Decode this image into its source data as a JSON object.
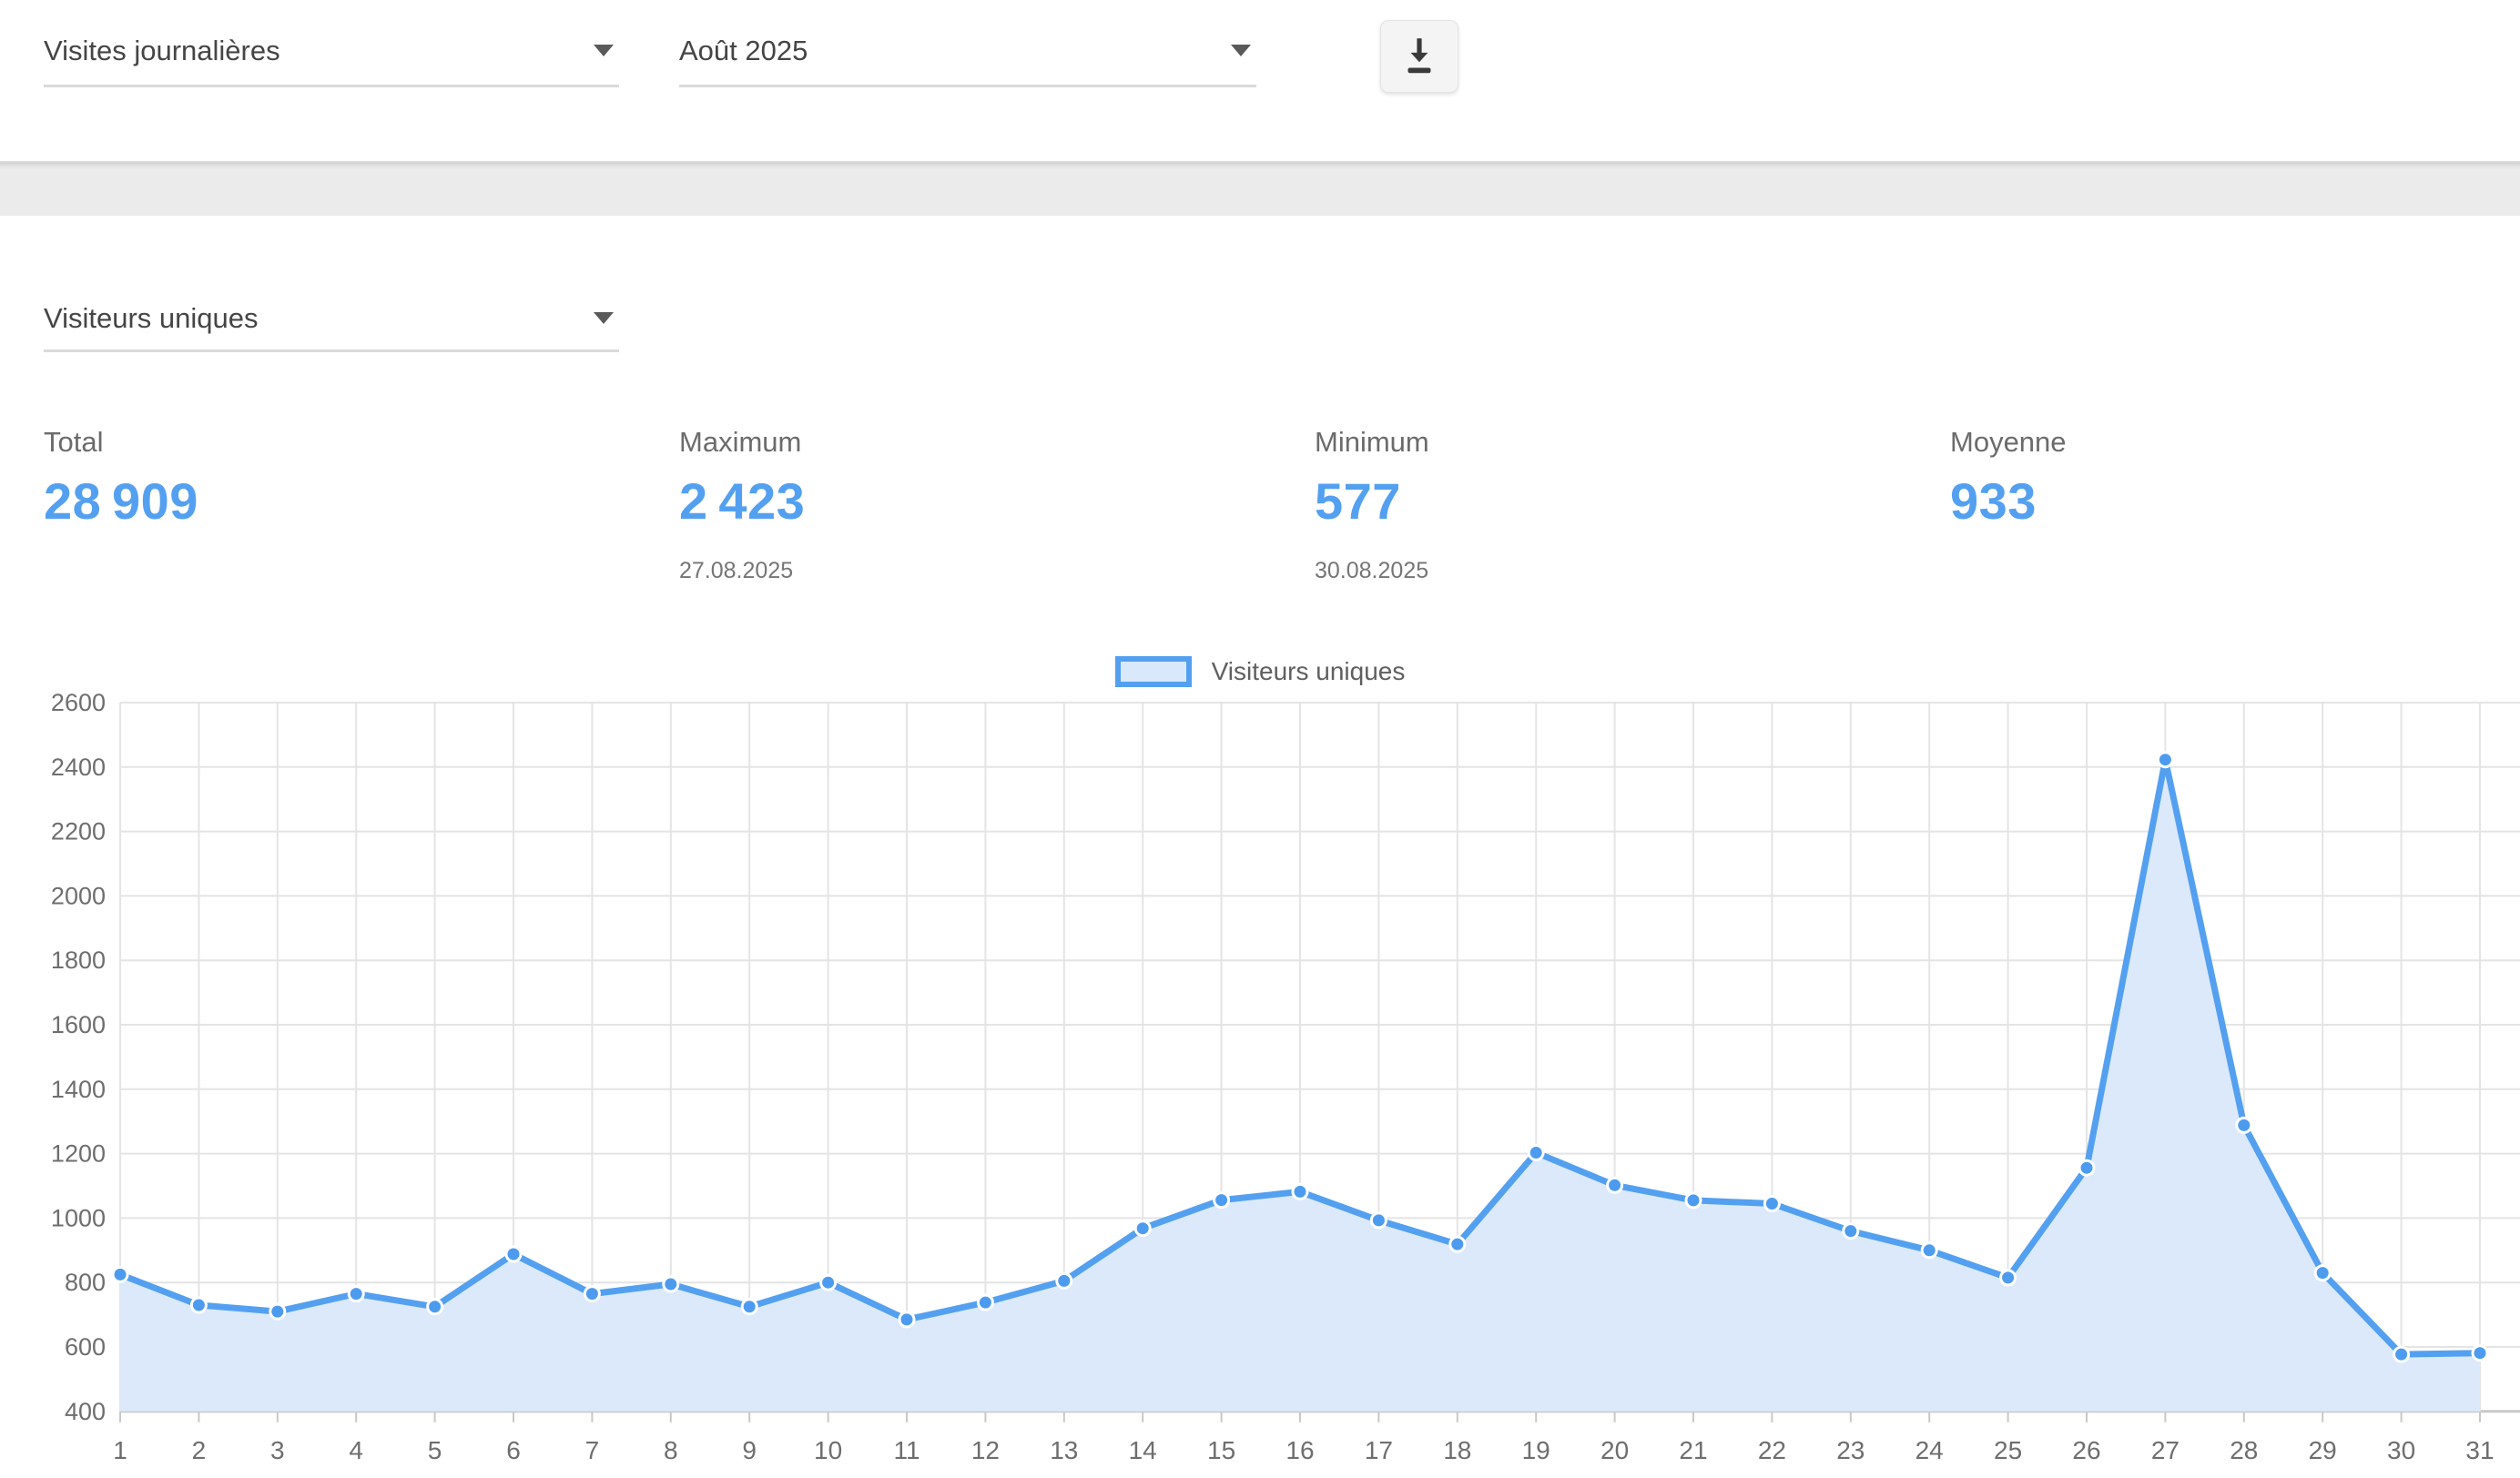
{
  "toolbar": {
    "metric_select": {
      "value": "Visites journalières"
    },
    "period_select": {
      "value": "Août 2025"
    },
    "download_icon": "download-icon"
  },
  "series_select": {
    "value": "Visiteurs uniques"
  },
  "stats": [
    {
      "label": "Total",
      "value": "28 909",
      "date": ""
    },
    {
      "label": "Maximum",
      "value": "2 423",
      "date": "27.08.2025"
    },
    {
      "label": "Minimum",
      "value": "577",
      "date": "30.08.2025"
    },
    {
      "label": "Moyenne",
      "value": "933",
      "date": ""
    }
  ],
  "legend": {
    "label": "Visiteurs uniques"
  },
  "colors": {
    "accent_blue": "#54A0F0",
    "area_fill": "#DCE9FA",
    "legend_fill": "#D9E8FB",
    "grid_line": "#E4E4E4",
    "axis_line": "#C8C8C8",
    "tick_text": "#6E6E6E",
    "dot_fill": "#4D9BEF"
  },
  "chart_data": {
    "type": "area",
    "title": "",
    "xlabel": "",
    "ylabel": "",
    "x": [
      1,
      2,
      3,
      4,
      5,
      6,
      7,
      8,
      9,
      10,
      11,
      12,
      13,
      14,
      15,
      16,
      17,
      18,
      19,
      20,
      21,
      22,
      23,
      24,
      25,
      26,
      27,
      28,
      29,
      30,
      31
    ],
    "series": [
      {
        "name": "Visiteurs uniques",
        "values": [
          825,
          730,
          710,
          765,
          725,
          888,
          765,
          795,
          725,
          800,
          685,
          738,
          805,
          968,
          1056,
          1082,
          993,
          919,
          1203,
          1102,
          1055,
          1045,
          960,
          900,
          815,
          1156,
          2423,
          1288,
          830,
          577,
          581
        ]
      }
    ],
    "ylim": [
      400,
      2600
    ],
    "ytick_step": 200,
    "grid": true,
    "legend_position": "top-center",
    "summary": {
      "total": 28909,
      "maximum": 2423,
      "maximum_date": "27.08.2025",
      "minimum": 577,
      "minimum_date": "30.08.2025",
      "mean": 933
    }
  }
}
